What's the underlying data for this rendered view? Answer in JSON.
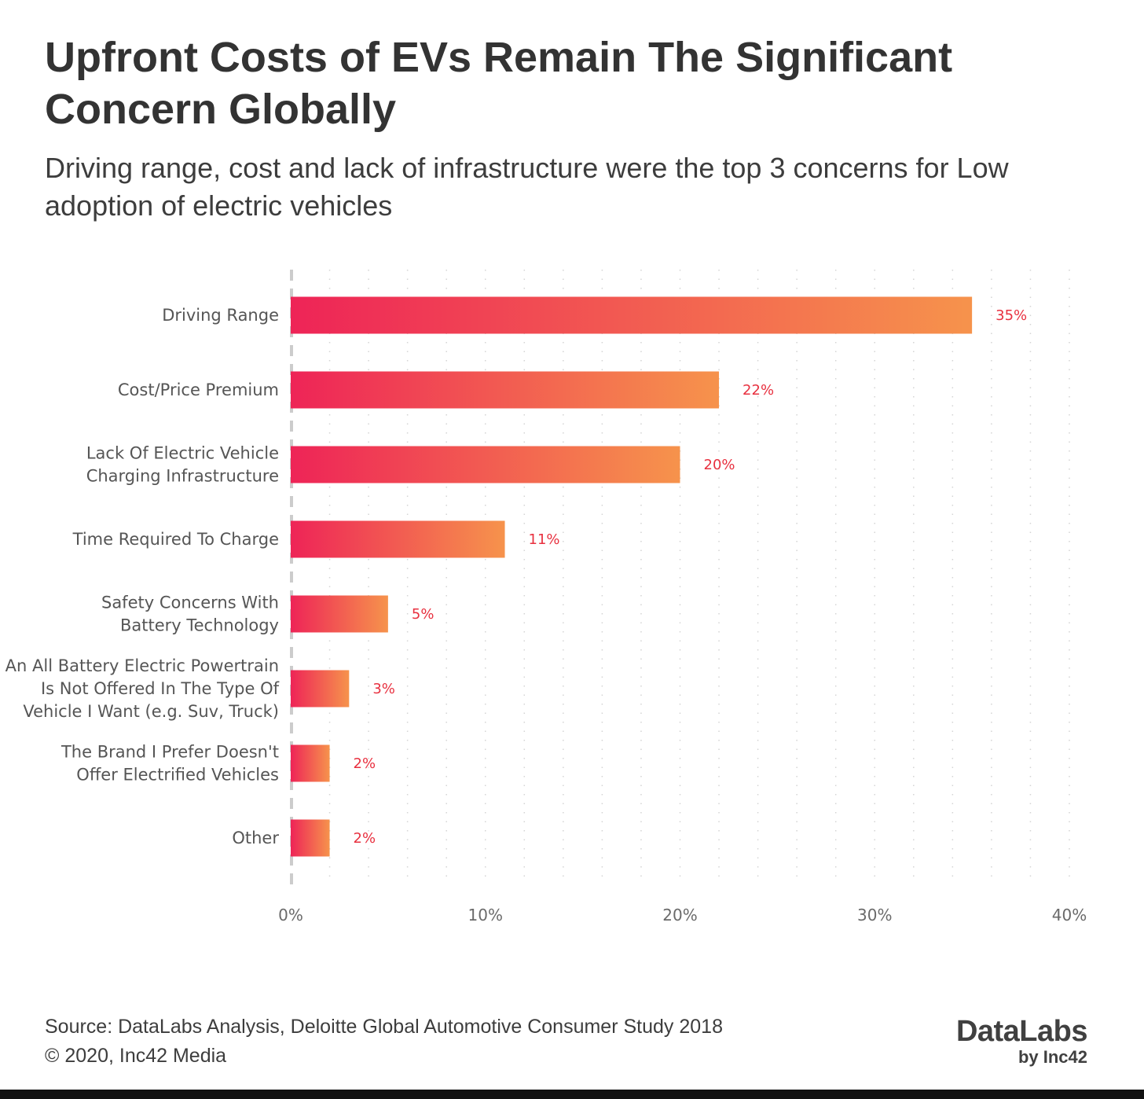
{
  "title": "Upfront Costs of EVs Remain The Significant Concern Globally",
  "subtitle": "Driving range, cost and lack of infrastructure were the top 3 concerns for Low adoption of electric vehicles",
  "source_line1": "Source: DataLabs Analysis, Deloitte Global Automotive Consumer Study 2018",
  "source_line2": "© 2020, Inc42 Media",
  "logo": {
    "main": "DataLabs",
    "sub": "by Inc42"
  },
  "colors": {
    "bar_start": "#ee2457",
    "bar_end": "#f6934c",
    "value_label": "#e8303f"
  },
  "chart_data": {
    "type": "bar",
    "orientation": "horizontal",
    "categories": [
      [
        "Driving Range"
      ],
      [
        "Cost/Price Premium"
      ],
      [
        "Lack Of Electric Vehicle",
        "Charging Infrastructure"
      ],
      [
        "Time Required To Charge"
      ],
      [
        "Safety Concerns With",
        "Battery Technology"
      ],
      [
        "An All Battery Electric Powertrain",
        "Is Not Offered In The Type Of",
        "Vehicle I Want (e.g. Suv, Truck)"
      ],
      [
        "The Brand I Prefer Doesn't",
        "Offer Electrified Vehicles"
      ],
      [
        "Other"
      ]
    ],
    "values": [
      35,
      22,
      20,
      11,
      5,
      3,
      2,
      2
    ],
    "value_labels": [
      "35%",
      "22%",
      "20%",
      "11%",
      "5%",
      "3%",
      "2%",
      "2%"
    ],
    "xlim": [
      0,
      40
    ],
    "xticks": [
      0,
      10,
      20,
      30,
      40
    ],
    "xtick_labels": [
      "0%",
      "10%",
      "20%",
      "30%",
      "40%"
    ],
    "grid": true
  }
}
